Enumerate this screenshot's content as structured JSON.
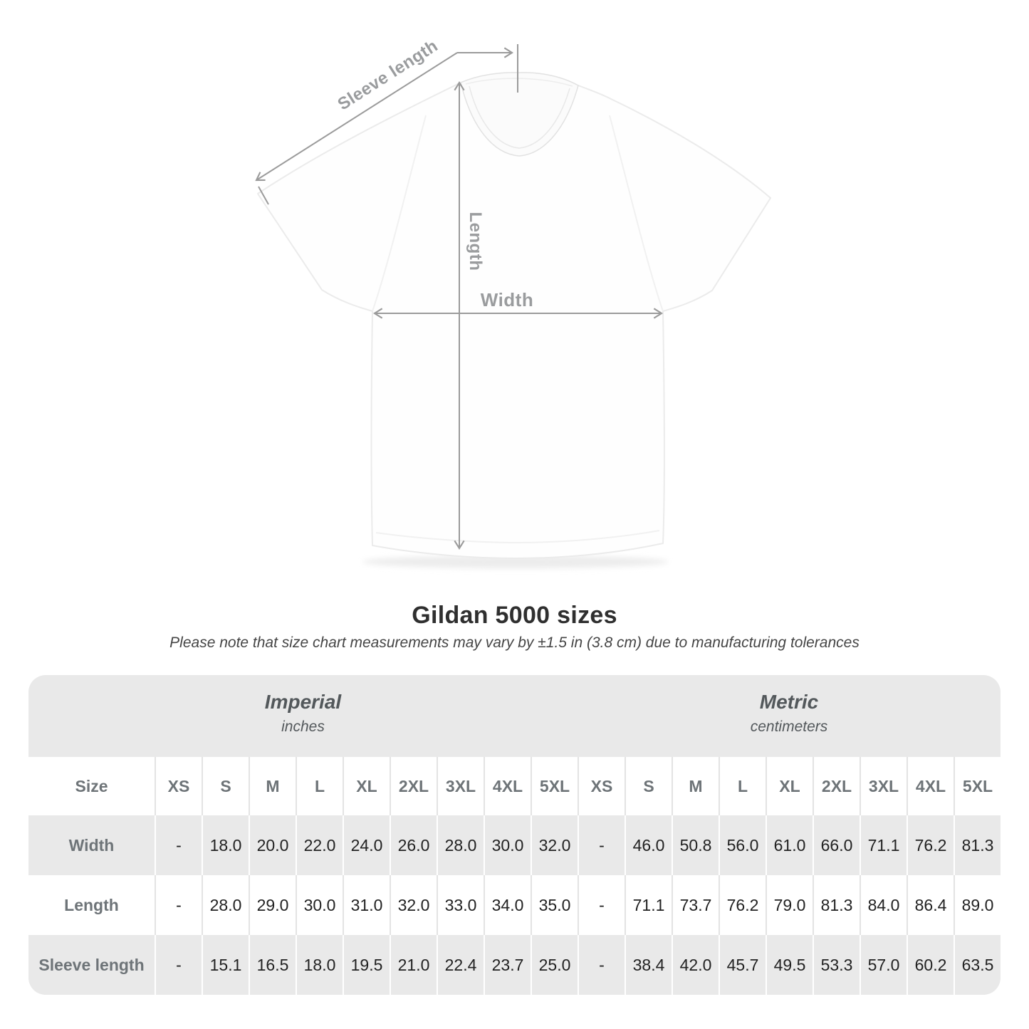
{
  "diagram": {
    "sleeve_length_label": "Sleeve length",
    "length_label": "Length",
    "width_label": "Width"
  },
  "heading": {
    "title": "Gildan 5000 sizes",
    "subtitle": "Please note that size chart measurements may vary by ±1.5 in (3.8 cm) due to manufacturing tolerances"
  },
  "table": {
    "size_col_header": "Size",
    "unit_groups": [
      {
        "name": "Imperial",
        "unit": "inches"
      },
      {
        "name": "Metric",
        "unit": "centimeters"
      }
    ],
    "sizes": [
      "XS",
      "S",
      "M",
      "L",
      "XL",
      "2XL",
      "3XL",
      "4XL",
      "5XL"
    ],
    "rows": [
      {
        "label": "Width",
        "imperial": [
          "-",
          "18.0",
          "20.0",
          "22.0",
          "24.0",
          "26.0",
          "28.0",
          "30.0",
          "32.0"
        ],
        "metric": [
          "-",
          "46.0",
          "50.8",
          "56.0",
          "61.0",
          "66.0",
          "71.1",
          "76.2",
          "81.3"
        ]
      },
      {
        "label": "Length",
        "imperial": [
          "-",
          "28.0",
          "29.0",
          "30.0",
          "31.0",
          "32.0",
          "33.0",
          "34.0",
          "35.0"
        ],
        "metric": [
          "-",
          "71.1",
          "73.7",
          "76.2",
          "79.0",
          "81.3",
          "84.0",
          "86.4",
          "89.0"
        ]
      },
      {
        "label": "Sleeve length",
        "imperial": [
          "-",
          "15.1",
          "16.5",
          "18.0",
          "19.5",
          "21.0",
          "22.4",
          "23.7",
          "25.0"
        ],
        "metric": [
          "-",
          "38.4",
          "42.0",
          "45.7",
          "49.5",
          "53.3",
          "57.0",
          "60.2",
          "63.5"
        ]
      }
    ]
  },
  "colors": {
    "band_gray": "#e9e9e9",
    "row_gray": "#e9e9e9",
    "separator_on_white": "#e3e3e3",
    "separator_on_gray": "#ffffff",
    "measure_line": "#9b9b9b",
    "diagram_label": "#9a9c9e",
    "header_text": "#6e7478",
    "value_text": "#222222",
    "title_text": "#2f2f2f"
  }
}
